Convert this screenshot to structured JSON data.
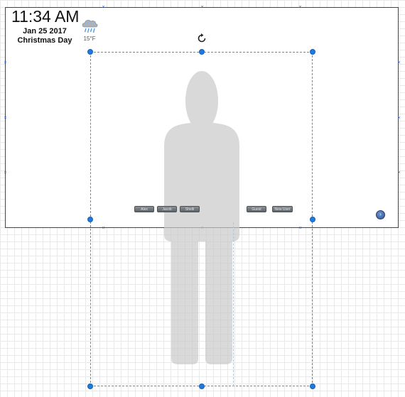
{
  "clock": {
    "time": "11:34 AM",
    "date": "Jan 25 2017",
    "holiday": "Christmas Day"
  },
  "weather": {
    "icon": "rain-cloud-icon",
    "temperature": "15°F"
  },
  "buttons": [
    {
      "label": "Alex"
    },
    {
      "label": "Jacob"
    },
    {
      "label": "Shelli"
    },
    {
      "label": "Guest"
    },
    {
      "label": "New User"
    }
  ],
  "colors": {
    "selection": "#4a90e2",
    "handle": "#1f7ae0",
    "button": "#6a7076",
    "silhouette": "#cfcfcf"
  }
}
